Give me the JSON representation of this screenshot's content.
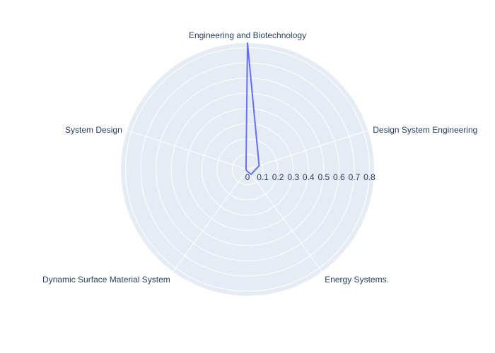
{
  "chart_data": {
    "type": "radar",
    "categories": [
      "Engineering and Biotechnology",
      "Design System Engineering",
      "Energy Systems.",
      "Dynamic Surface Material System",
      "System Design"
    ],
    "series": [
      {
        "values": [
          0.83,
          0.08,
          0.04,
          0.01,
          0.01
        ]
      }
    ],
    "radial_ticks": [
      "0",
      "0.1",
      "0.2",
      "0.3",
      "0.4",
      "0.5",
      "0.6",
      "0.7",
      "0.8"
    ],
    "rlim": [
      0,
      0.83
    ],
    "grid": true,
    "colors": {
      "background": "#e5ecf6",
      "grid": "#ffffff",
      "line": "#636efa",
      "text": "#2a3f5f"
    }
  }
}
